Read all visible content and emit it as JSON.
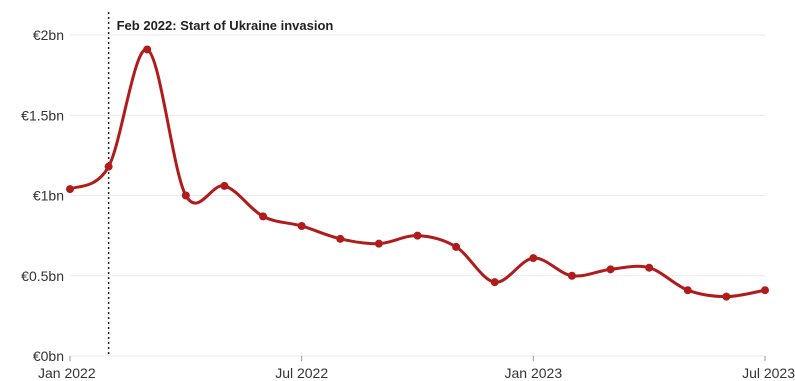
{
  "chart_data": {
    "type": "line",
    "title": "",
    "xlabel": "",
    "ylabel": "",
    "x": [
      "2022-01",
      "2022-02",
      "2022-03",
      "2022-04",
      "2022-05",
      "2022-06",
      "2022-07",
      "2022-08",
      "2022-09",
      "2022-10",
      "2022-11",
      "2022-12",
      "2023-01",
      "2023-02",
      "2023-03",
      "2023-04",
      "2023-05",
      "2023-06",
      "2023-07"
    ],
    "series": [
      {
        "values": [
          1.04,
          1.18,
          1.91,
          1.0,
          1.06,
          0.87,
          0.81,
          0.73,
          0.7,
          0.75,
          0.68,
          0.46,
          0.61,
          0.5,
          0.54,
          0.55,
          0.41,
          0.37,
          0.41
        ],
        "color": "#b01c1c"
      }
    ],
    "y_ticks": [
      {
        "value": 0,
        "label": "€0bn"
      },
      {
        "value": 0.5,
        "label": "€0.5bn"
      },
      {
        "value": 1,
        "label": "€1bn"
      },
      {
        "value": 1.5,
        "label": "€1.5bn"
      },
      {
        "value": 2,
        "label": "€2bn"
      }
    ],
    "x_ticks": [
      {
        "value": "2022-01",
        "label": "Jan 2022"
      },
      {
        "value": "2022-07",
        "label": "Jul 2022"
      },
      {
        "value": "2023-01",
        "label": "Jan 2023"
      },
      {
        "value": "2023-07",
        "label": "Jul 2023"
      }
    ],
    "ylim": [
      0,
      2
    ],
    "xlim": [
      "2022-01",
      "2023-07"
    ],
    "grid": "horizontal",
    "annotations": [
      {
        "x": "2022-02",
        "label": "Feb 2022: Start of Ukraine invasion",
        "style": "dotted-vertical-line"
      }
    ]
  }
}
